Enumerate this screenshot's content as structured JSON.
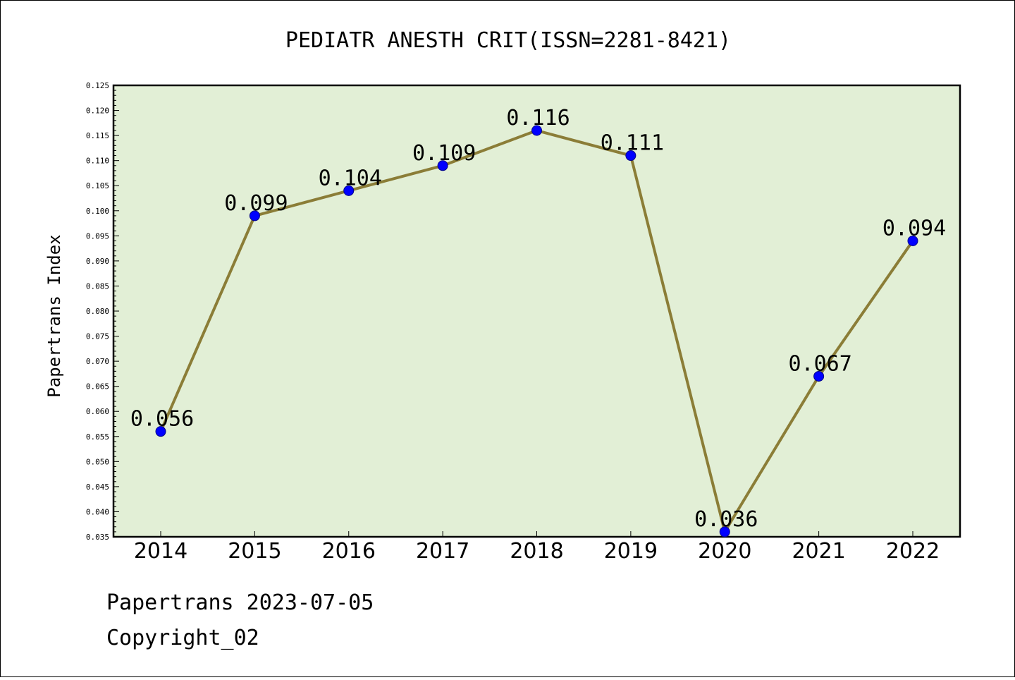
{
  "chart_data": {
    "type": "line",
    "title": "PEDIATR ANESTH CRIT(ISSN=2281-8421)",
    "xlabel": "",
    "ylabel": "Papertrans Index",
    "categories": [
      "2014",
      "2015",
      "2016",
      "2017",
      "2018",
      "2019",
      "2020",
      "2021",
      "2022"
    ],
    "series": [
      {
        "values": [
          0.056,
          0.099,
          0.104,
          0.109,
          0.116,
          0.111,
          0.036,
          0.067,
          0.094
        ],
        "labels": [
          "0.056",
          "0.099",
          "0.104",
          "0.109",
          "0.116",
          "0.111",
          "0.036",
          "0.067",
          "0.094"
        ]
      }
    ],
    "ylim": [
      0.035,
      0.125
    ],
    "yticks": [
      "0.035",
      "0.040",
      "0.045",
      "0.050",
      "0.055",
      "0.060",
      "0.065",
      "0.070",
      "0.075",
      "0.080",
      "0.085",
      "0.090",
      "0.095",
      "0.100",
      "0.105",
      "0.110",
      "0.115",
      "0.120",
      "0.125"
    ],
    "grid": false,
    "legend": "none",
    "colors": {
      "plot_background": "#e2efd6",
      "line": "#8b7d37",
      "marker_fill": "#0000ff",
      "marker_edge": "#00008b"
    }
  },
  "footer": {
    "line1": "Papertrans 2023-07-05",
    "line2": "Copyright_02"
  }
}
